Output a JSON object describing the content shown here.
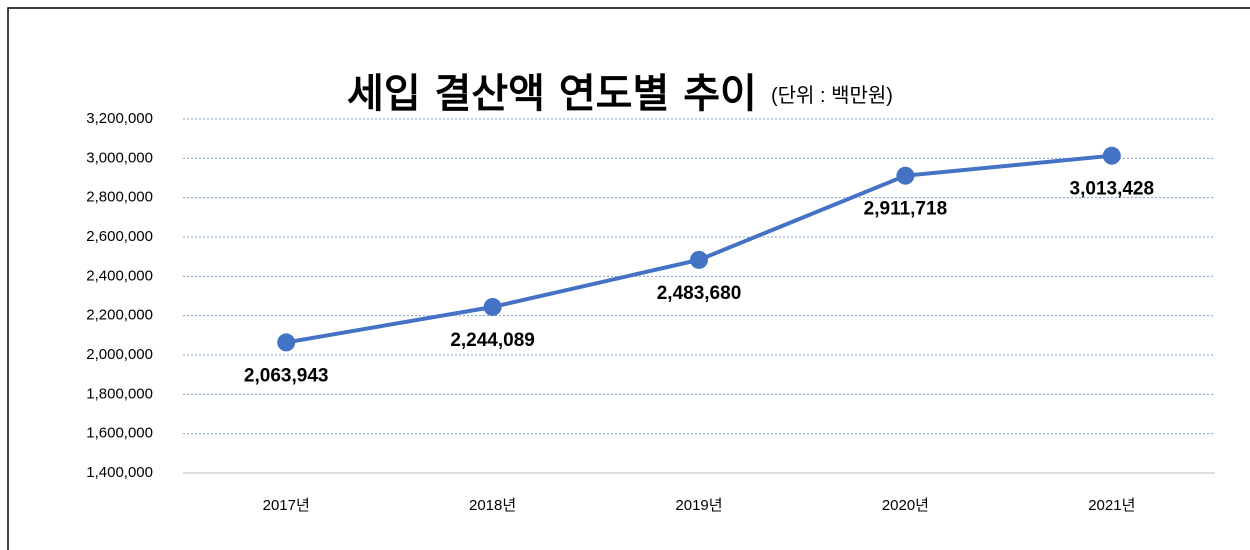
{
  "chart_data": {
    "type": "line",
    "title": "세입 결산액 연도별 추이",
    "subtitle": "(단위 : 백만원)",
    "categories": [
      "2017년",
      "2018년",
      "2019년",
      "2020년",
      "2021년"
    ],
    "series": [
      {
        "name": "세입 결산액",
        "color": "#4472c4",
        "values": [
          2063943,
          2244089,
          2483680,
          2911718,
          3013428
        ],
        "value_labels": [
          "2,063,943",
          "2,244,089",
          "2,483,680",
          "2,911,718",
          "3,013,428"
        ]
      }
    ],
    "ylim": [
      1400000,
      3200000
    ],
    "yticks": [
      {
        "value": 1400000,
        "label": "1,400,000"
      },
      {
        "value": 1600000,
        "label": "1,600,000"
      },
      {
        "value": 1800000,
        "label": "1,800,000"
      },
      {
        "value": 2000000,
        "label": "2,000,000"
      },
      {
        "value": 2200000,
        "label": "2,200,000"
      },
      {
        "value": 2400000,
        "label": "2,400,000"
      },
      {
        "value": 2600000,
        "label": "2,600,000"
      },
      {
        "value": 2800000,
        "label": "2,800,000"
      },
      {
        "value": 3000000,
        "label": "3,000,000"
      },
      {
        "value": 3200000,
        "label": "3,200,000"
      }
    ],
    "grid": true
  }
}
